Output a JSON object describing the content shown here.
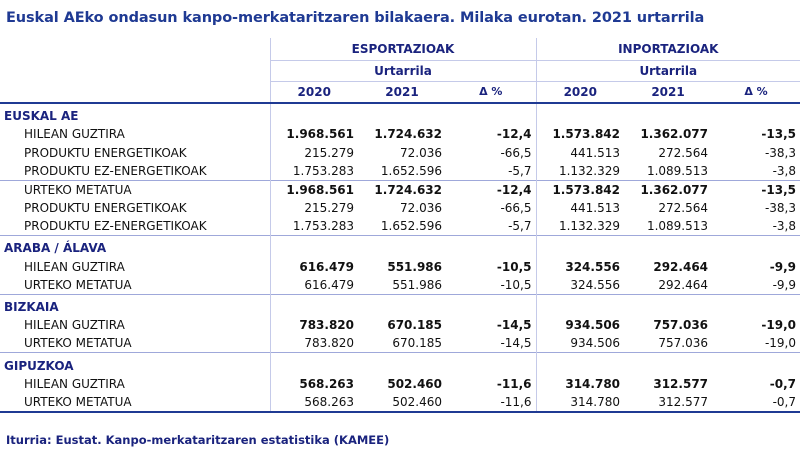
{
  "title": "Euskal AEko ondasun kanpo-merkataritzaren  bilakaera. Milaka eurotan. 2021 urtarrila",
  "header": {
    "export_label": "ESPORTAZIOAK",
    "import_label": "INPORTAZIOAK",
    "export_period": "Urtarrila",
    "import_period": "Urtarrila",
    "year1": "2020",
    "year2": "2021",
    "delta": "Δ %"
  },
  "sections": [
    {
      "name": "EUSKAL AE",
      "rows": [
        {
          "label": "HILEAN GUZTIRA",
          "bold": true,
          "v": [
            "1.968.561",
            "1.724.632",
            "-12,4",
            "1.573.842",
            "1.362.077",
            "-13,5"
          ]
        },
        {
          "label": "PRODUKTU ENERGETIKOAK",
          "bold": false,
          "v": [
            "215.279",
            "72.036",
            "-66,5",
            "441.513",
            "272.564",
            "-38,3"
          ]
        },
        {
          "label": "PRODUKTU EZ-ENERGETIKOAK",
          "bold": false,
          "v": [
            "1.753.283",
            "1.652.596",
            "-5,7",
            "1.132.329",
            "1.089.513",
            "-3,8"
          ]
        },
        {
          "label": "URTEKO METATUA",
          "bold": true,
          "topline": true,
          "v": [
            "1.968.561",
            "1.724.632",
            "-12,4",
            "1.573.842",
            "1.362.077",
            "-13,5"
          ]
        },
        {
          "label": "PRODUKTU ENERGETIKOAK",
          "bold": false,
          "v": [
            "215.279",
            "72.036",
            "-66,5",
            "441.513",
            "272.564",
            "-38,3"
          ]
        },
        {
          "label": "PRODUKTU EZ-ENERGETIKOAK",
          "bold": false,
          "v": [
            "1.753.283",
            "1.652.596",
            "-5,7",
            "1.132.329",
            "1.089.513",
            "-3,8"
          ]
        }
      ]
    },
    {
      "name": "ARABA / ÁLAVA",
      "rows": [
        {
          "label": "HILEAN GUZTIRA",
          "bold": true,
          "v": [
            "616.479",
            "551.986",
            "-10,5",
            "324.556",
            "292.464",
            "-9,9"
          ]
        },
        {
          "label": "URTEKO METATUA",
          "bold": false,
          "v": [
            "616.479",
            "551.986",
            "-10,5",
            "324.556",
            "292.464",
            "-9,9"
          ]
        }
      ]
    },
    {
      "name": "BIZKAIA",
      "rows": [
        {
          "label": "HILEAN GUZTIRA",
          "bold": true,
          "v": [
            "783.820",
            "670.185",
            "-14,5",
            "934.506",
            "757.036",
            "-19,0"
          ]
        },
        {
          "label": "URTEKO METATUA",
          "bold": false,
          "v": [
            "783.820",
            "670.185",
            "-14,5",
            "934.506",
            "757.036",
            "-19,0"
          ]
        }
      ]
    },
    {
      "name": "GIPUZKOA",
      "rows": [
        {
          "label": "HILEAN GUZTIRA",
          "bold": true,
          "v": [
            "568.263",
            "502.460",
            "-11,6",
            "314.780",
            "312.577",
            "-0,7"
          ]
        },
        {
          "label": "URTEKO METATUA",
          "bold": false,
          "v": [
            "568.263",
            "502.460",
            "-11,6",
            "314.780",
            "312.577",
            "-0,7"
          ]
        }
      ]
    }
  ],
  "source": "Iturria: Eustat. Kanpo-merkataritzaren estatistika (KAMEE)"
}
